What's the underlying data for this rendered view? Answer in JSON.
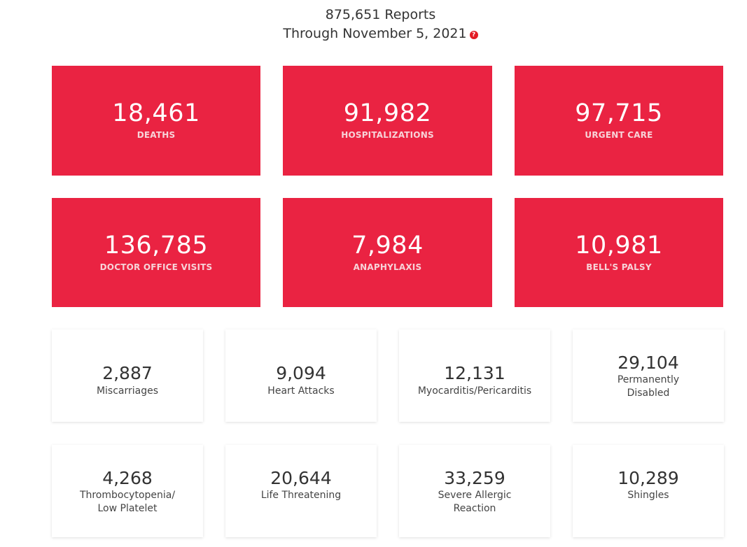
{
  "header": {
    "reports_line": "875,651 Reports",
    "through_line": "Through November 5, 2021",
    "help_icon": "question-circle-icon",
    "help_glyph": "?"
  },
  "colors": {
    "card_red": "#ea2342",
    "help_red": "#e31b23"
  },
  "red_cards": [
    {
      "value": "18,461",
      "label": "DEATHS"
    },
    {
      "value": "91,982",
      "label": "HOSPITALIZATIONS"
    },
    {
      "value": "97,715",
      "label": "URGENT CARE"
    },
    {
      "value": "136,785",
      "label": "DOCTOR OFFICE VISITS"
    },
    {
      "value": "7,984",
      "label": "ANAPHYLAXIS"
    },
    {
      "value": "10,981",
      "label": "BELL'S PALSY"
    }
  ],
  "white_cards": [
    {
      "value": "2,887",
      "label_line1": "Miscarriages"
    },
    {
      "value": "9,094",
      "label_line1": "Heart Attacks"
    },
    {
      "value": "12,131",
      "label_line1": "Myocarditis/Pericarditis"
    },
    {
      "value": "29,104",
      "label_line1": "Permanently",
      "label_line2": "Disabled"
    },
    {
      "value": "4,268",
      "label_line1": "Thrombocytopenia/",
      "label_line2": "Low Platelet"
    },
    {
      "value": "20,644",
      "label_line1": "Life Threatening"
    },
    {
      "value": "33,259",
      "label_line1": "Severe Allergic",
      "label_line2": "Reaction"
    },
    {
      "value": "10,289",
      "label_line1": "Shingles"
    }
  ]
}
